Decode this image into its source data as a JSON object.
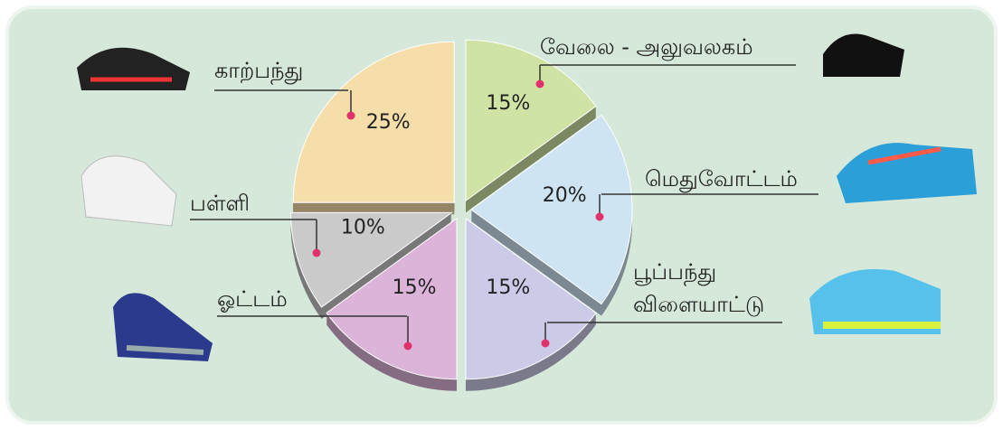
{
  "chart_data": {
    "type": "pie",
    "categories": [
      "வேலை - அலுவலகம்",
      "மெதுவோட்டம்",
      "பூப்பந்து விளையாட்டு",
      "ஓட்டம்",
      "பள்ளி",
      "காற்பந்து"
    ],
    "values": [
      15,
      20,
      15,
      15,
      10,
      25
    ],
    "value_labels": [
      "15%",
      "20%",
      "15%",
      "15%",
      "10%",
      "25%"
    ],
    "colors": [
      "#cfe3a4",
      "#cfe4f3",
      "#cbcbe8",
      "#ddb4d9",
      "#cacaca",
      "#f5deaa"
    ]
  }
}
